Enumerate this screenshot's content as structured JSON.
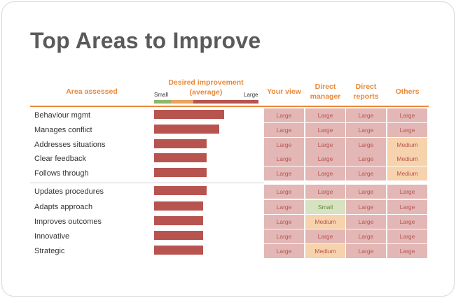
{
  "title": "Top Areas to Improve",
  "headers": {
    "area": "Area assessed",
    "desired": "Desired improvement (average)",
    "scale_small": "Small",
    "scale_large": "Large",
    "your_view": "Your view",
    "direct_manager": "Direct manager",
    "direct_reports": "Direct reports",
    "others": "Others"
  },
  "colors": {
    "accent": "#e8893a",
    "bar": "#b85450",
    "large_bg": "#e2b7b5",
    "medium_bg": "#f6d2ad",
    "small_bg": "#d6e2c0",
    "scale_small": "#8db86a",
    "scale_medium": "#e8a35c",
    "scale_large": "#b85450"
  },
  "rows": [
    {
      "label": "Behaviour mgmt",
      "improvement": 0.9,
      "ratings": [
        "Large",
        "Large",
        "Large",
        "Large"
      ]
    },
    {
      "label": "Manages conflict",
      "improvement": 0.84,
      "ratings": [
        "Large",
        "Large",
        "Large",
        "Large"
      ]
    },
    {
      "label": "Addresses situations",
      "improvement": 0.68,
      "ratings": [
        "Large",
        "Large",
        "Large",
        "Medium"
      ]
    },
    {
      "label": "Clear feedback",
      "improvement": 0.68,
      "ratings": [
        "Large",
        "Large",
        "Large",
        "Medium"
      ]
    },
    {
      "label": "Follows through",
      "improvement": 0.68,
      "ratings": [
        "Large",
        "Large",
        "Large",
        "Medium"
      ]
    },
    {
      "label": "Updates procedures",
      "improvement": 0.68,
      "ratings": [
        "Large",
        "Large",
        "Large",
        "Large"
      ]
    },
    {
      "label": "Adapts approach",
      "improvement": 0.63,
      "ratings": [
        "Large",
        "Small",
        "Large",
        "Large"
      ]
    },
    {
      "label": "Improves outcomes",
      "improvement": 0.63,
      "ratings": [
        "Large",
        "Medium",
        "Large",
        "Large"
      ]
    },
    {
      "label": "Innovative",
      "improvement": 0.63,
      "ratings": [
        "Large",
        "Large",
        "Large",
        "Large"
      ]
    },
    {
      "label": "Strategic",
      "improvement": 0.63,
      "ratings": [
        "Large",
        "Medium",
        "Large",
        "Large"
      ]
    }
  ]
}
